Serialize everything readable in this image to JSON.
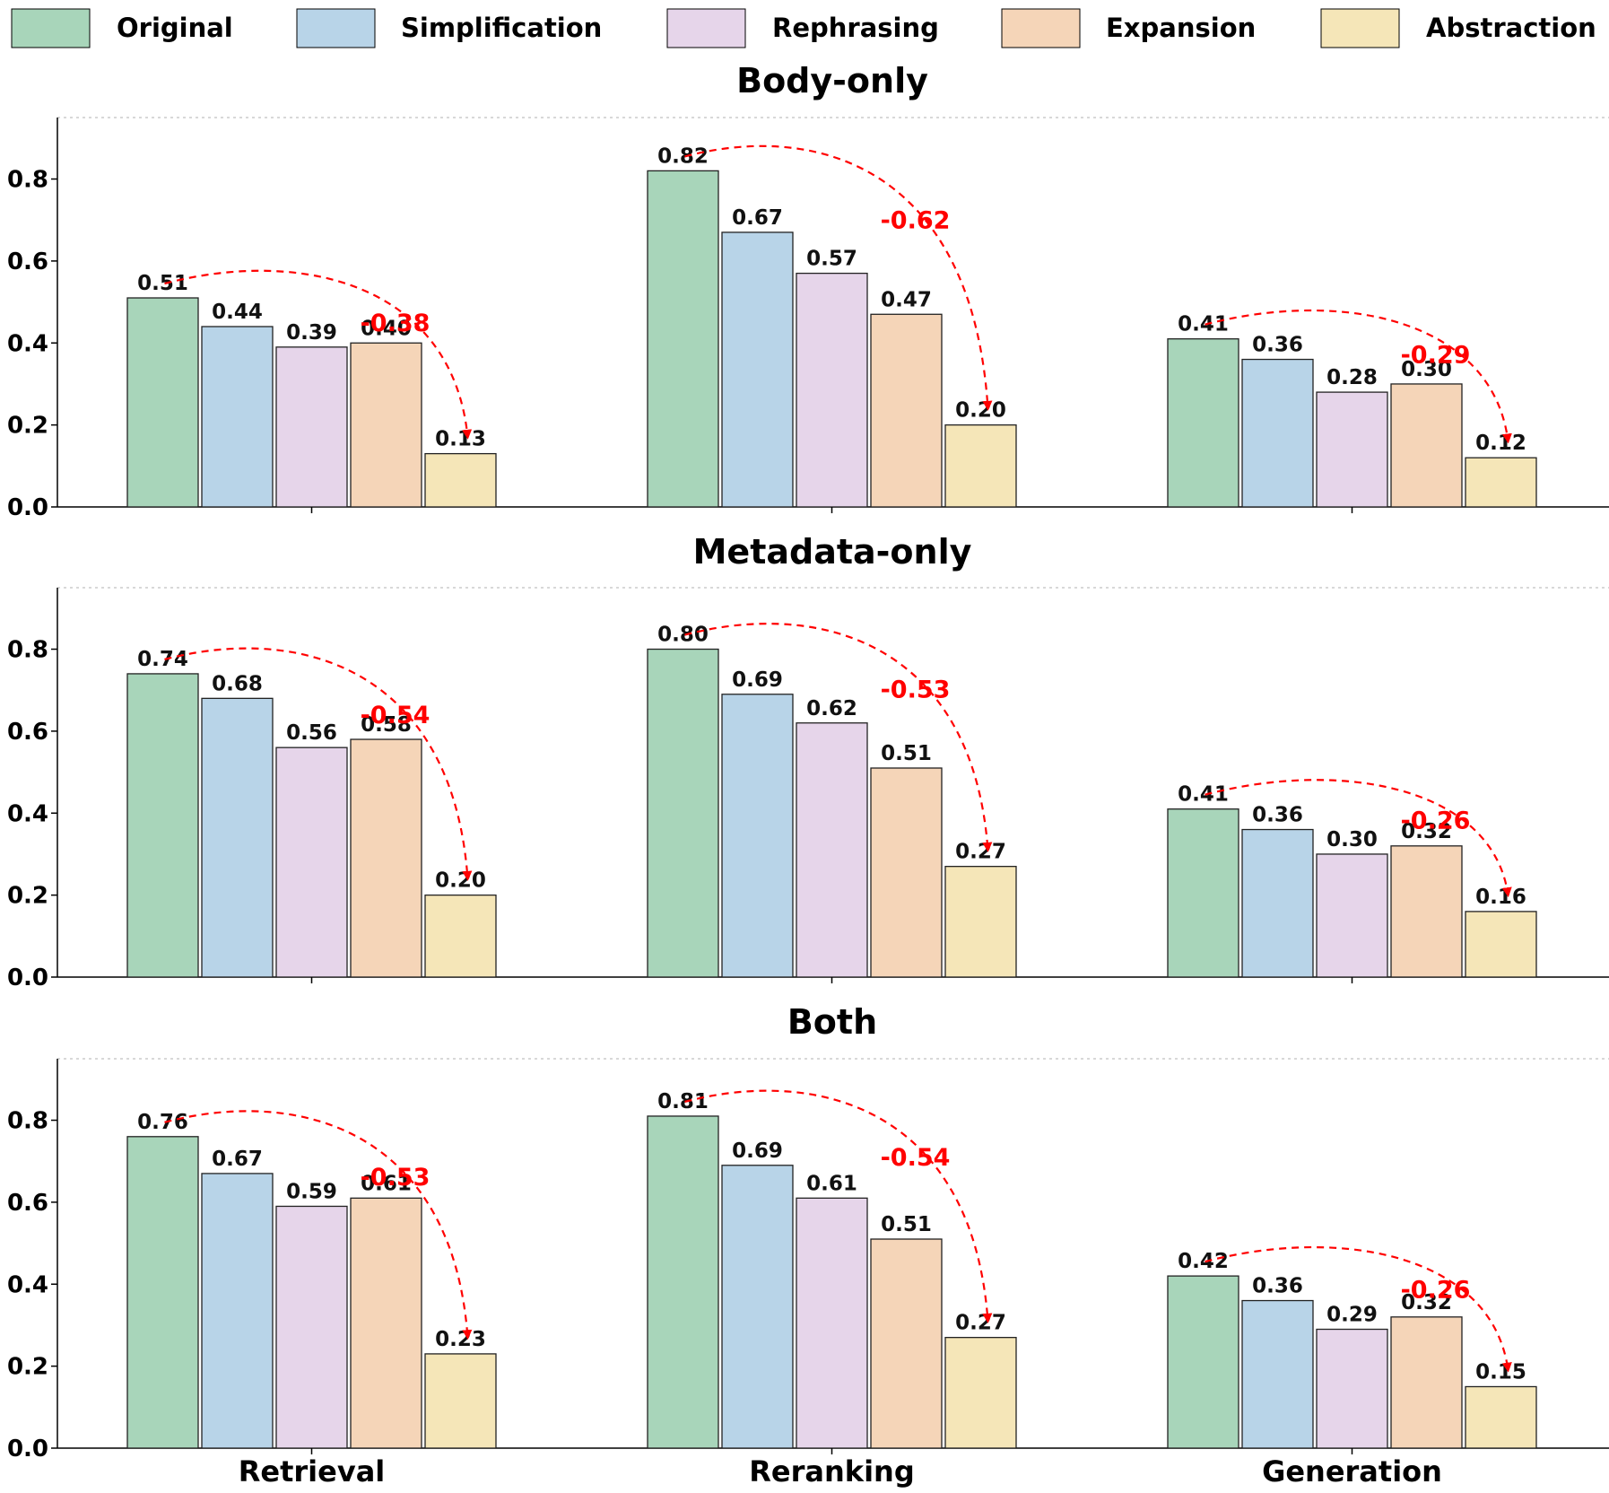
{
  "chart_data": {
    "type": "bar",
    "categories": [
      "Retrieval",
      "Reranking",
      "Generation"
    ],
    "ylim": [
      0,
      0.95
    ],
    "yticks": [
      "0.0",
      "0.2",
      "0.4",
      "0.6",
      "0.8"
    ],
    "legend": {
      "placement": "top",
      "entries": [
        {
          "name": "Original",
          "color": "#a8d5ba"
        },
        {
          "name": "Simplification",
          "color": "#b8d4e8"
        },
        {
          "name": "Rephrasing",
          "color": "#e6d5ea"
        },
        {
          "name": "Expansion",
          "color": "#f5d5b8"
        },
        {
          "name": "Abstraction",
          "color": "#f5e6b8"
        }
      ]
    },
    "annotation_color": "#ff0000",
    "panels": [
      {
        "title": "Body-only",
        "series": [
          {
            "name": "Original",
            "values": [
              0.51,
              0.82,
              0.41
            ],
            "labels": [
              "0.51",
              "0.82",
              "0.41"
            ]
          },
          {
            "name": "Simplification",
            "values": [
              0.44,
              0.67,
              0.36
            ],
            "labels": [
              "0.44",
              "0.67",
              "0.36"
            ]
          },
          {
            "name": "Rephrasing",
            "values": [
              0.39,
              0.57,
              0.28
            ],
            "labels": [
              "0.39",
              "0.57",
              "0.28"
            ]
          },
          {
            "name": "Expansion",
            "values": [
              0.4,
              0.47,
              0.3
            ],
            "labels": [
              "0.40",
              "0.47",
              "0.30"
            ]
          },
          {
            "name": "Abstraction",
            "values": [
              0.13,
              0.2,
              0.12
            ],
            "labels": [
              "0.13",
              "0.20",
              "0.12"
            ]
          }
        ],
        "drops": [
          "-0.38",
          "-0.62",
          "-0.29"
        ]
      },
      {
        "title": "Metadata-only",
        "series": [
          {
            "name": "Original",
            "values": [
              0.74,
              0.8,
              0.41
            ],
            "labels": [
              "0.74",
              "0.80",
              "0.41"
            ]
          },
          {
            "name": "Simplification",
            "values": [
              0.68,
              0.69,
              0.36
            ],
            "labels": [
              "0.68",
              "0.69",
              "0.36"
            ]
          },
          {
            "name": "Rephrasing",
            "values": [
              0.56,
              0.62,
              0.3
            ],
            "labels": [
              "0.56",
              "0.62",
              "0.30"
            ]
          },
          {
            "name": "Expansion",
            "values": [
              0.58,
              0.51,
              0.32
            ],
            "labels": [
              "0.58",
              "0.51",
              "0.32"
            ]
          },
          {
            "name": "Abstraction",
            "values": [
              0.2,
              0.27,
              0.16
            ],
            "labels": [
              "0.20",
              "0.27",
              "0.16"
            ]
          }
        ],
        "drops": [
          "-0.54",
          "-0.53",
          "-0.26"
        ]
      },
      {
        "title": "Both",
        "series": [
          {
            "name": "Original",
            "values": [
              0.76,
              0.81,
              0.42
            ],
            "labels": [
              "0.76",
              "0.81",
              "0.42"
            ]
          },
          {
            "name": "Simplification",
            "values": [
              0.67,
              0.69,
              0.36
            ],
            "labels": [
              "0.67",
              "0.69",
              "0.36"
            ]
          },
          {
            "name": "Rephrasing",
            "values": [
              0.59,
              0.61,
              0.29
            ],
            "labels": [
              "0.59",
              "0.61",
              "0.29"
            ]
          },
          {
            "name": "Expansion",
            "values": [
              0.61,
              0.51,
              0.32
            ],
            "labels": [
              "0.61",
              "0.51",
              "0.32"
            ]
          },
          {
            "name": "Abstraction",
            "values": [
              0.23,
              0.27,
              0.15
            ],
            "labels": [
              "0.23",
              "0.27",
              "0.15"
            ]
          }
        ],
        "drops": [
          "-0.53",
          "-0.54",
          "-0.26"
        ]
      }
    ]
  }
}
